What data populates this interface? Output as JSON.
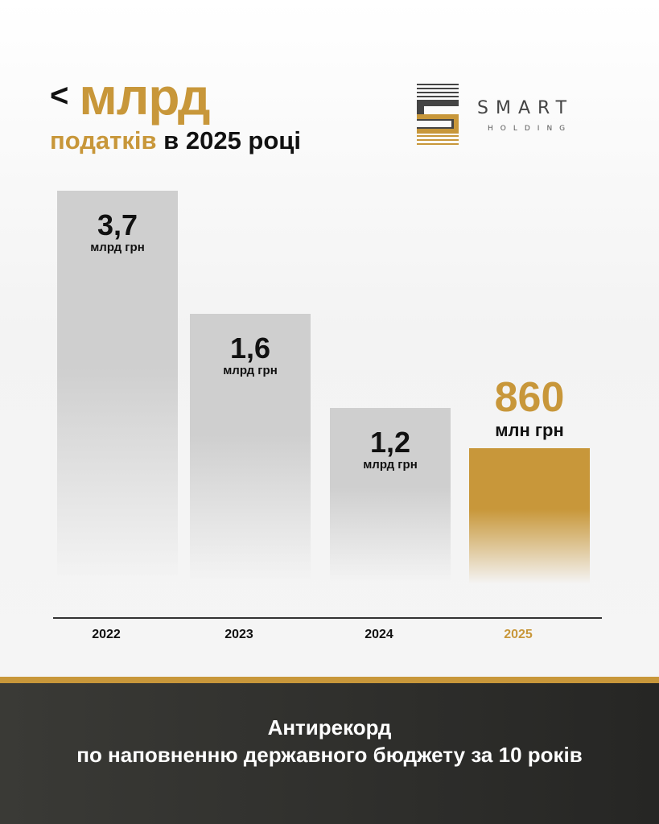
{
  "header": {
    "symbol": "<",
    "title_accent": "млрд",
    "subtitle_accent": "податків",
    "subtitle_rest": "в 2025 році"
  },
  "logo": {
    "name": "SMART",
    "sub": "HOLDING"
  },
  "colors": {
    "accent": "#c8973a",
    "bar": "#cfcfcf",
    "dark": "#2e2e2b"
  },
  "chart_data": {
    "type": "bar",
    "categories": [
      "2022",
      "2023",
      "2024",
      "2025"
    ],
    "values": [
      3.7,
      1.6,
      1.2,
      0.86
    ],
    "value_unit": "млрд грн",
    "labels": [
      {
        "num": "3,7",
        "unit": "млрд грн"
      },
      {
        "num": "1,6",
        "unit": "млрд грн"
      },
      {
        "num": "1,2",
        "unit": "млрд грн"
      },
      {
        "num": "860",
        "unit": "млн грн"
      }
    ],
    "highlight": "2025"
  },
  "footer": {
    "line1": "Антирекорд",
    "line2": "по наповненню державного бюджету за 10 років"
  }
}
